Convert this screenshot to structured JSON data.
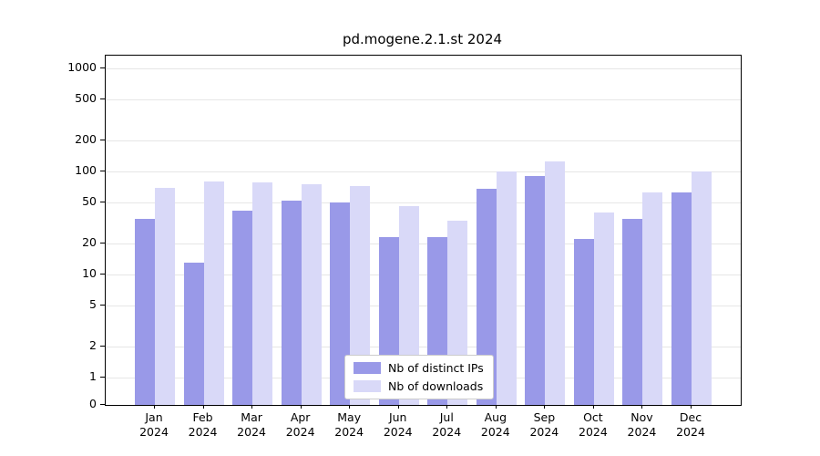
{
  "title": "pd.mogene.2.1.st 2024",
  "chart_data": {
    "type": "bar",
    "title": "pd.mogene.2.1.st 2024",
    "xlabel": "",
    "ylabel": "",
    "x_year": "2024",
    "categories": [
      "Jan",
      "Feb",
      "Mar",
      "Apr",
      "May",
      "Jun",
      "Jul",
      "Aug",
      "Sep",
      "Oct",
      "Nov",
      "Dec"
    ],
    "series": [
      {
        "name": "Nb of distinct IPs",
        "color": "#9999e8",
        "values": [
          35,
          13,
          42,
          52,
          50,
          23,
          23,
          68,
          90,
          22,
          35,
          62
        ]
      },
      {
        "name": "Nb of downloads",
        "color": "#d9d9f8",
        "values": [
          70,
          80,
          78,
          75,
          72,
          46,
          33,
          100,
          125,
          40,
          62,
          100
        ]
      }
    ],
    "y_scale": "log",
    "y_ticks": [
      0,
      1,
      2,
      5,
      10,
      20,
      50,
      100,
      200,
      500,
      1000
    ],
    "ylim": [
      0,
      1000
    ],
    "grid": true,
    "legend_position": "bottom-center"
  }
}
